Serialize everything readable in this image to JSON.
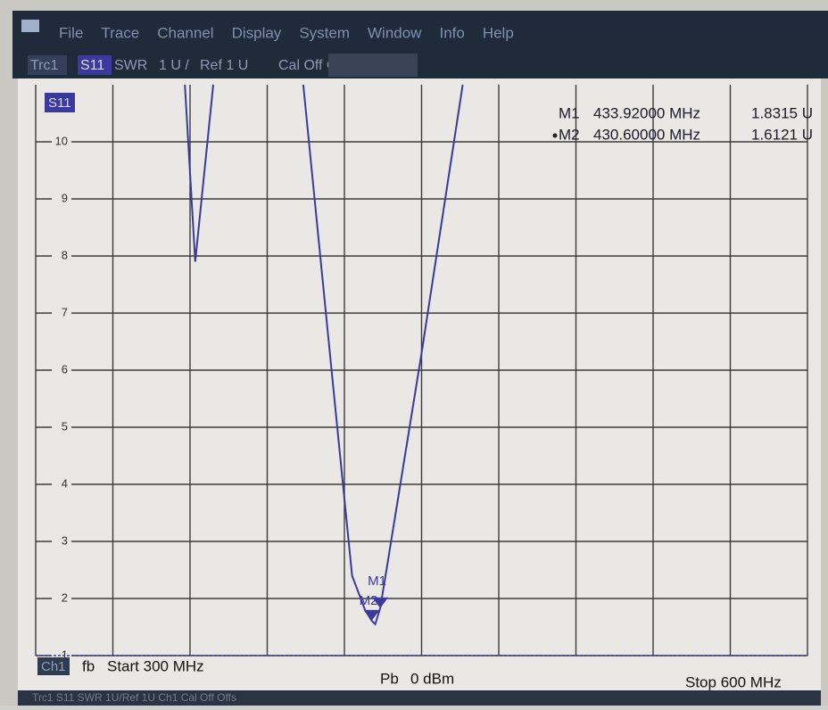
{
  "menu": [
    "File",
    "Trace",
    "Channel",
    "Display",
    "System",
    "Window",
    "Info",
    "Help"
  ],
  "trace_bar": [
    "Trc1",
    "S11",
    "SWR",
    "1 U /",
    "Ref 1 U",
    "Cal Off Offs"
  ],
  "chart_data": {
    "type": "line",
    "trace_label": "S11",
    "color": "#3b3a9c",
    "x": [
      358,
      362,
      369,
      380,
      404,
      415,
      423,
      428,
      430.6,
      432,
      433.92,
      436,
      450,
      466
    ],
    "values": [
      11,
      7.9,
      11,
      null,
      11,
      6,
      2.4,
      1.8,
      1.6121,
      1.55,
      1.8315,
      2.4,
      6.3,
      11
    ],
    "xlim": [
      300,
      600
    ],
    "xticks": [
      300,
      330,
      360,
      390,
      420,
      450,
      480,
      510,
      540,
      570,
      600
    ],
    "ylim": [
      1,
      11
    ],
    "yticks": [
      1,
      2,
      3,
      4,
      5,
      6,
      7,
      8,
      9,
      10
    ],
    "grid": true,
    "active_marker": 1,
    "markers": [
      {
        "name": "M1",
        "x": {
          "value": 433.92,
          "label": "433.92000 MHz"
        },
        "y": {
          "value": 1.8315,
          "label": "1.8315 U"
        }
      },
      {
        "name": "M2",
        "x": {
          "value": 430.6,
          "label": "430.60000 MHz"
        },
        "y": {
          "value": 1.6121,
          "label": "1.6121 U"
        }
      }
    ]
  },
  "footer": {
    "channel": "Ch1",
    "fb": "fb",
    "start": "Start 300 MHz",
    "pb": "Pb",
    "power": "0 dBm",
    "stop": "Stop 600 MHz"
  },
  "status_bar": "Trc1  S11  SWR  1U/Ref 1U  Ch1  Cal Off Offs"
}
